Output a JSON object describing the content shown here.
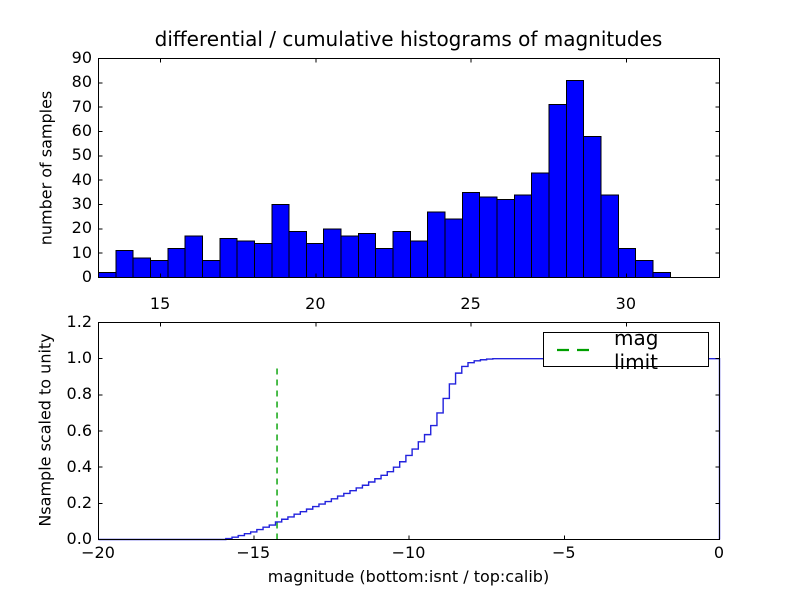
{
  "figure": {
    "background": "#ffffff",
    "text_color": "#000000"
  },
  "chart_data": [
    {
      "type": "bar",
      "subtype": "histogram-differential",
      "title": "differential / cumulative histograms of magnitudes",
      "xlabel": "",
      "ylabel": "number of samples",
      "xlim": [
        13,
        33
      ],
      "ylim": [
        0,
        90
      ],
      "xticks": [
        15,
        20,
        25,
        30
      ],
      "yticks": [
        0,
        10,
        20,
        30,
        40,
        50,
        60,
        70,
        80,
        90
      ],
      "ytick_labels": [
        "0",
        "10",
        "20",
        "30",
        "40",
        "50",
        "60",
        "70",
        "80",
        "90"
      ],
      "bin_start": 13.0,
      "bin_width": 0.558,
      "values": [
        2,
        11,
        8,
        7,
        12,
        17,
        7,
        16,
        15,
        14,
        30,
        19,
        14,
        20,
        17,
        18,
        12,
        19,
        15,
        27,
        24,
        35,
        33,
        32,
        34,
        43,
        71,
        81,
        58,
        34,
        12,
        7,
        2
      ],
      "bar_color": "#0000ff",
      "bar_edge_color": "#000000",
      "grid": false
    },
    {
      "type": "line",
      "subtype": "histogram-cumulative-step",
      "xlabel": "magnitude (bottom:isnt / top:calib)",
      "ylabel": "Nsample scaled to unity",
      "xlim": [
        -20,
        0
      ],
      "ylim": [
        0,
        1.2
      ],
      "xticks": [
        -20,
        -15,
        -10,
        -5,
        0
      ],
      "xtick_labels": [
        "−20",
        "−15",
        "−10",
        "−5",
        "0"
      ],
      "yticks": [
        0,
        0.2,
        0.4,
        0.6,
        0.8,
        1.0,
        1.2
      ],
      "ytick_labels": [
        "0.0",
        "0.2",
        "0.4",
        "0.6",
        "0.8",
        "1.0",
        "1.2"
      ],
      "top_axis": {
        "xlim": [
          13,
          33
        ],
        "ticks": [
          15,
          20,
          25,
          30
        ],
        "labels": [
          "15",
          "20",
          "25",
          "30"
        ]
      },
      "line_color": "#2222dd",
      "curve_start_x": -20,
      "steps": [
        [
          -15.9,
          0.005
        ],
        [
          -15.7,
          0.013
        ],
        [
          -15.5,
          0.022
        ],
        [
          -15.3,
          0.032
        ],
        [
          -15.1,
          0.042
        ],
        [
          -14.9,
          0.055
        ],
        [
          -14.7,
          0.068
        ],
        [
          -14.5,
          0.08
        ],
        [
          -14.3,
          0.097
        ],
        [
          -14.1,
          0.112
        ],
        [
          -13.9,
          0.125
        ],
        [
          -13.7,
          0.14
        ],
        [
          -13.5,
          0.154
        ],
        [
          -13.3,
          0.168
        ],
        [
          -13.1,
          0.182
        ],
        [
          -12.9,
          0.196
        ],
        [
          -12.7,
          0.21
        ],
        [
          -12.5,
          0.225
        ],
        [
          -12.3,
          0.24
        ],
        [
          -12.1,
          0.255
        ],
        [
          -11.9,
          0.27
        ],
        [
          -11.7,
          0.285
        ],
        [
          -11.5,
          0.3
        ],
        [
          -11.3,
          0.318
        ],
        [
          -11.1,
          0.336
        ],
        [
          -10.9,
          0.355
        ],
        [
          -10.7,
          0.375
        ],
        [
          -10.5,
          0.4
        ],
        [
          -10.3,
          0.43
        ],
        [
          -10.1,
          0.465
        ],
        [
          -9.9,
          0.5
        ],
        [
          -9.7,
          0.54
        ],
        [
          -9.5,
          0.58
        ],
        [
          -9.3,
          0.63
        ],
        [
          -9.1,
          0.7
        ],
        [
          -8.9,
          0.78
        ],
        [
          -8.7,
          0.86
        ],
        [
          -8.5,
          0.92
        ],
        [
          -8.3,
          0.957
        ],
        [
          -8.1,
          0.978
        ],
        [
          -7.9,
          0.988
        ],
        [
          -7.7,
          0.994
        ],
        [
          -7.5,
          0.998
        ],
        [
          -7.3,
          1.0
        ]
      ],
      "curve_end": {
        "x": 0,
        "plateau_y": 1.0,
        "drop_to": 0
      },
      "mag_limit": {
        "x": -14.25,
        "y_bottom": 0,
        "y_top": 0.97,
        "color": "#00a000",
        "line_style": "dashed"
      },
      "legend": {
        "label": "mag limit",
        "location": "upper right"
      },
      "grid": false
    }
  ]
}
